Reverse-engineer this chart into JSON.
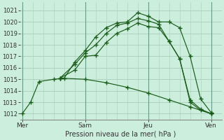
{
  "title": "",
  "xlabel": "Pression niveau de la mer( hPa )",
  "background_color": "#cceedd",
  "grid_color": "#aaccbb",
  "line_color": "#1a5c1a",
  "ylim": [
    1011.5,
    1021.7
  ],
  "yticks": [
    1012,
    1013,
    1014,
    1015,
    1016,
    1017,
    1018,
    1019,
    1020,
    1021
  ],
  "xtick_labels": [
    "Mer",
    "Sam",
    "Jeu",
    "Ven"
  ],
  "xtick_pos": [
    0,
    3,
    6,
    9
  ],
  "xlim": [
    -0.1,
    9.5
  ],
  "lines": [
    {
      "x": [
        0,
        0.4,
        0.8,
        1.5,
        2.0,
        2.5,
        3.0,
        3.5,
        4.0,
        4.5,
        5.0,
        5.5,
        6.0,
        6.5,
        7.0,
        7.5,
        8.0,
        8.5,
        9.0
      ],
      "y": [
        1012,
        1013,
        1014.8,
        1015.0,
        1015.1,
        1016.5,
        1017.5,
        1018.7,
        1019.5,
        1019.9,
        1020.0,
        1020.8,
        1020.5,
        1020.0,
        1020.0,
        1019.5,
        1017.0,
        1013.3,
        1012.1
      ]
    },
    {
      "x": [
        1.8,
        2.5,
        3.0,
        3.5,
        4.0,
        4.5,
        5.0,
        5.5,
        6.0,
        6.5,
        7.0,
        7.5,
        8.0,
        8.5,
        9.0
      ],
      "y": [
        1015.1,
        1016.3,
        1017.3,
        1018.0,
        1019.0,
        1019.7,
        1019.9,
        1020.3,
        1020.1,
        1019.8,
        1018.3,
        1016.8,
        1013.2,
        1012.4,
        1012.0
      ]
    },
    {
      "x": [
        1.8,
        2.5,
        3.0,
        3.5,
        4.0,
        4.5,
        5.0,
        5.5,
        6.0,
        6.5,
        7.0,
        7.5,
        8.0,
        8.5,
        9.0
      ],
      "y": [
        1015.1,
        1015.8,
        1017.0,
        1017.1,
        1018.2,
        1019.0,
        1019.4,
        1019.9,
        1019.6,
        1019.5,
        1018.3,
        1016.8,
        1013.0,
        1012.3,
        1012.0
      ]
    },
    {
      "x": [
        1.8,
        3.0,
        4.0,
        5.0,
        6.0,
        7.0,
        8.0,
        9.0
      ],
      "y": [
        1015.1,
        1015.0,
        1014.7,
        1014.3,
        1013.8,
        1013.2,
        1012.6,
        1012.0
      ]
    }
  ]
}
